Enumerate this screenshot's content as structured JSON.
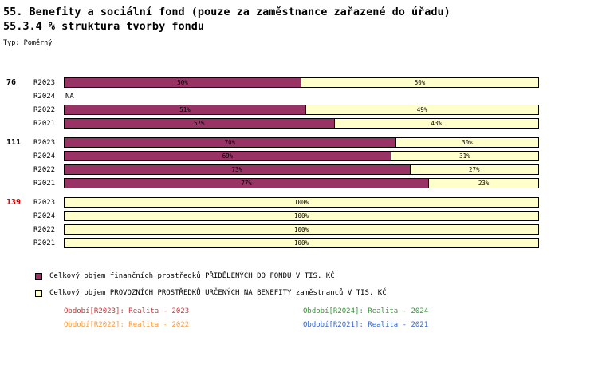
{
  "header": {
    "title": "55. Benefity a sociální fond (pouze za zaměstnance zařazené do úřadu)",
    "subtitle": "55.3.4 % struktura tvorby fondu",
    "type_label": "Typ: Poměrný"
  },
  "colors": {
    "fund": "#993366",
    "benefit": "#FFFFCC",
    "group_id_highlight": "#CC0000"
  },
  "chart_data": {
    "type": "bar",
    "orientation": "horizontal",
    "stacked": true,
    "value_unit": "%",
    "xlim": [
      0,
      100
    ],
    "series_names": [
      "Přidělené do fondu",
      "Provozní prostředky na benefity"
    ],
    "groups": [
      {
        "id": "76",
        "id_color": "#000000",
        "rows": [
          {
            "period": "R2023",
            "fund_pct": 50,
            "benefit_pct": 50
          },
          {
            "period": "R2024",
            "na": true,
            "na_label": "NA"
          },
          {
            "period": "R2022",
            "fund_pct": 51,
            "benefit_pct": 49
          },
          {
            "period": "R2021",
            "fund_pct": 57,
            "benefit_pct": 43
          }
        ]
      },
      {
        "id": "111",
        "id_color": "#000000",
        "rows": [
          {
            "period": "R2023",
            "fund_pct": 70,
            "benefit_pct": 30
          },
          {
            "period": "R2024",
            "fund_pct": 69,
            "benefit_pct": 31
          },
          {
            "period": "R2022",
            "fund_pct": 73,
            "benefit_pct": 27
          },
          {
            "period": "R2021",
            "fund_pct": 77,
            "benefit_pct": 23
          }
        ]
      },
      {
        "id": "139",
        "id_color": "#CC0000",
        "rows": [
          {
            "period": "R2023",
            "fund_pct": 0,
            "benefit_pct": 100
          },
          {
            "period": "R2024",
            "fund_pct": 0,
            "benefit_pct": 100
          },
          {
            "period": "R2022",
            "fund_pct": 0,
            "benefit_pct": 100
          },
          {
            "period": "R2021",
            "fund_pct": 0,
            "benefit_pct": 100
          }
        ]
      }
    ]
  },
  "legend": {
    "items": [
      {
        "label": "Celkový objem finančních prostředků PŘIDĚLENÝCH DO FONDU V TIS. KČ",
        "color": "#993366"
      },
      {
        "label": "Celkový objem PROVOZNÍCH PROSTŘEDKŮ URČENÝCH NA BENEFITY zaměstnanců V TIS. KČ",
        "color": "#FFFFCC"
      }
    ]
  },
  "period_legend": {
    "items": [
      {
        "label": "Období[R2023]: Realita - 2023",
        "color": "#CC3333"
      },
      {
        "label": "Období[R2024]: Realita - 2024",
        "color": "#339933"
      },
      {
        "label": "Období[R2022]: Realita - 2022",
        "color": "#FF9933"
      },
      {
        "label": "Období[R2021]: Realita - 2021",
        "color": "#3366CC"
      }
    ]
  }
}
